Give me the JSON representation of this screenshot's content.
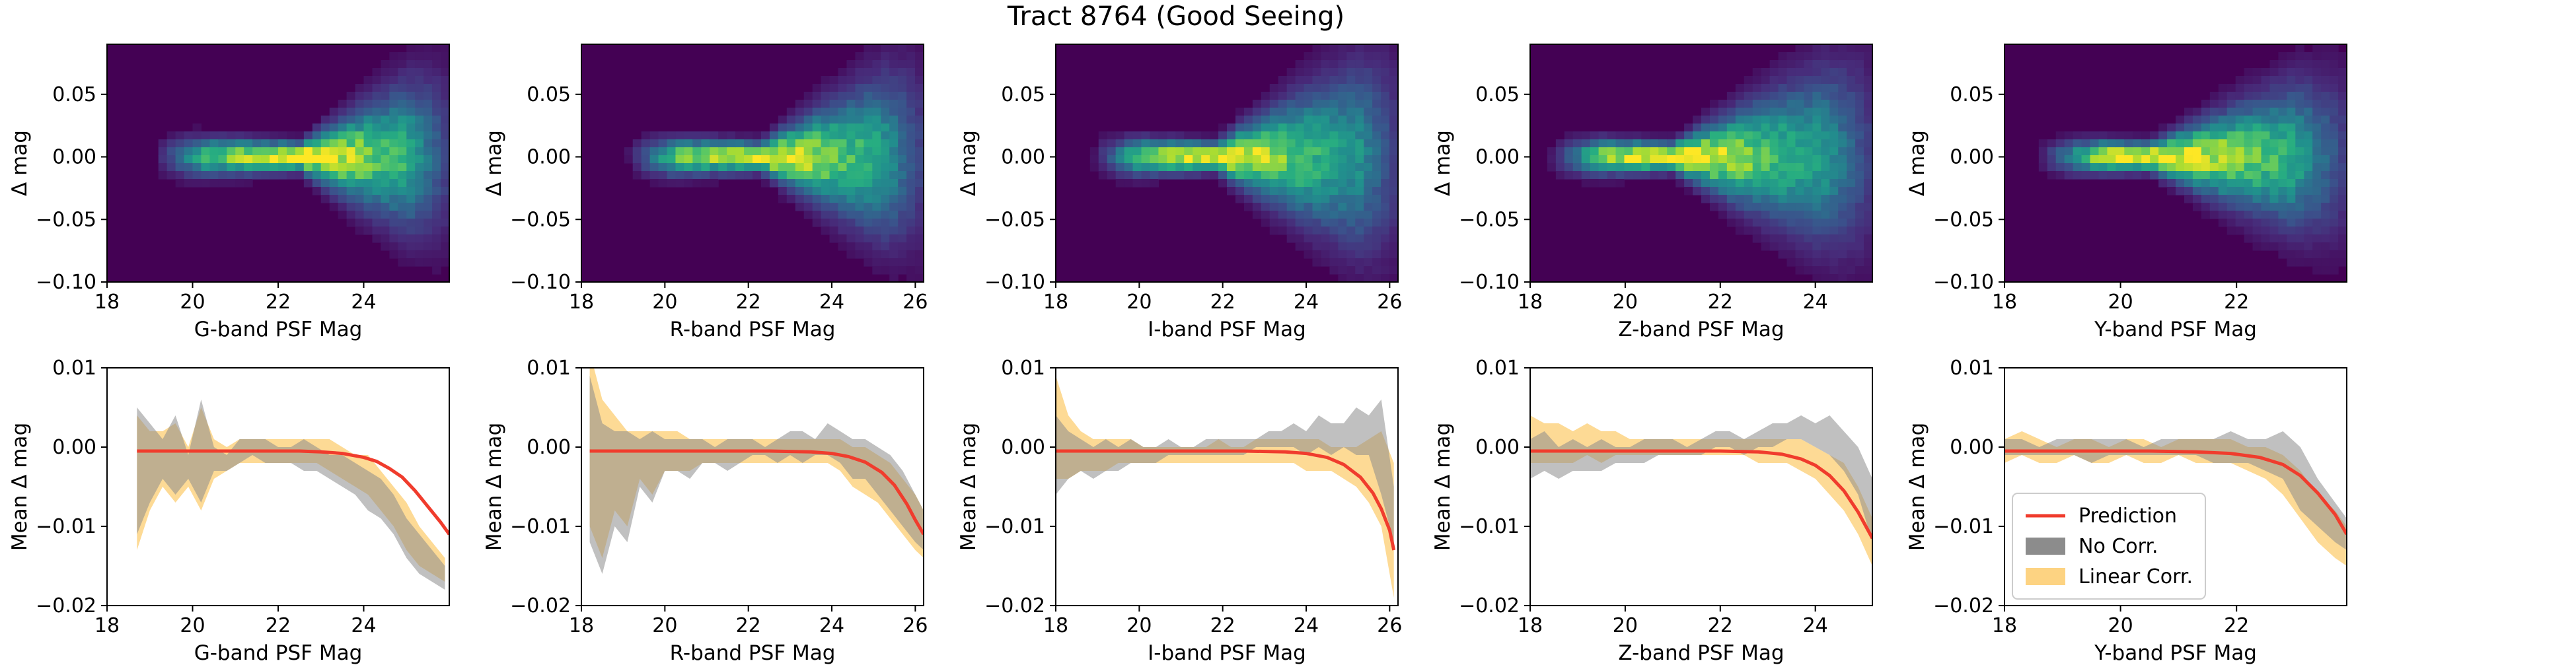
{
  "figure": {
    "title": "Tract 8764 (Good Seeing)"
  },
  "colors": {
    "heatmap_colormap": "viridis",
    "prediction_line": "#f03c2d",
    "no_corr_fill": "#8c8c8c",
    "linear_corr_fill": "#fdd382",
    "overlap_fill": "#c9a05a"
  },
  "legend": {
    "panel": "bottom-Y",
    "placement": "lower-left",
    "entries": [
      {
        "label": "Prediction",
        "kind": "line"
      },
      {
        "label": "No Corr.",
        "kind": "patch-gray"
      },
      {
        "label": "Linear Corr.",
        "kind": "patch-orange"
      }
    ]
  },
  "chart_data": [
    {
      "type": "heatmap",
      "row": "top",
      "band": "G",
      "xlabel": "G-band PSF Mag",
      "ylabel": "Δ mag",
      "xlim": [
        18,
        26
      ],
      "ylim": [
        -0.1,
        0.09
      ],
      "xticks": [
        "18",
        "20",
        "22",
        "24"
      ],
      "yticks": [
        "−0.10",
        "−0.05",
        "0.00",
        "0.05"
      ],
      "density": {
        "center_x": 22.5,
        "center_y": 0.0,
        "x_start": 19.0,
        "x_end": 26.0,
        "width_at_faint_end": 0.05
      }
    },
    {
      "type": "heatmap",
      "row": "top",
      "band": "R",
      "xlabel": "R-band PSF Mag",
      "ylabel": "Δ mag",
      "xlim": [
        18,
        26.2
      ],
      "ylim": [
        -0.1,
        0.09
      ],
      "xticks": [
        "18",
        "20",
        "22",
        "24",
        "26"
      ],
      "yticks": [
        "−0.10",
        "−0.05",
        "0.00",
        "0.05"
      ],
      "density": {
        "center_x": 22.3,
        "center_y": 0.0,
        "x_start": 19.0,
        "x_end": 26.2,
        "width_at_faint_end": 0.05
      }
    },
    {
      "type": "heatmap",
      "row": "top",
      "band": "I",
      "xlabel": "I-band PSF Mag",
      "ylabel": "Δ mag",
      "xlim": [
        18,
        26.2
      ],
      "ylim": [
        -0.1,
        0.09
      ],
      "xticks": [
        "18",
        "20",
        "22",
        "24",
        "26"
      ],
      "yticks": [
        "−0.10",
        "−0.05",
        "0.00",
        "0.05"
      ],
      "density": {
        "center_x": 21.8,
        "center_y": 0.0,
        "x_start": 18.8,
        "x_end": 26.2,
        "width_at_faint_end": 0.05
      }
    },
    {
      "type": "heatmap",
      "row": "top",
      "band": "Z",
      "xlabel": "Z-band PSF Mag",
      "ylabel": "Δ mag",
      "xlim": [
        18,
        25.2
      ],
      "ylim": [
        -0.1,
        0.09
      ],
      "xticks": [
        "18",
        "20",
        "22",
        "24"
      ],
      "yticks": [
        "−0.10",
        "−0.05",
        "0.00",
        "0.05"
      ],
      "density": {
        "center_x": 21.0,
        "center_y": 0.0,
        "x_start": 18.3,
        "x_end": 25.2,
        "width_at_faint_end": 0.05
      }
    },
    {
      "type": "heatmap",
      "row": "top",
      "band": "Y",
      "xlabel": "Y-band PSF Mag",
      "ylabel": "Δ mag",
      "xlim": [
        18,
        23.9
      ],
      "ylim": [
        -0.1,
        0.09
      ],
      "xticks": [
        "18",
        "20",
        "22"
      ],
      "yticks": [
        "−0.10",
        "−0.05",
        "0.00",
        "0.05"
      ],
      "density": {
        "center_x": 20.5,
        "center_y": 0.0,
        "x_start": 18.5,
        "x_end": 23.9,
        "width_at_faint_end": 0.05
      }
    },
    {
      "type": "area",
      "row": "bottom",
      "band": "G",
      "xlabel": "G-band PSF Mag",
      "ylabel": "Mean Δ mag",
      "xlim": [
        18,
        26
      ],
      "ylim": [
        -0.02,
        0.01
      ],
      "xticks": [
        "18",
        "20",
        "22",
        "24"
      ],
      "yticks": [
        "−0.02",
        "−0.01",
        "0.00",
        "0.01"
      ],
      "x": [
        18.7,
        19.0,
        19.3,
        19.6,
        19.9,
        20.2,
        20.5,
        20.8,
        21.1,
        21.4,
        21.7,
        22.0,
        22.3,
        22.6,
        22.9,
        23.2,
        23.5,
        23.8,
        24.1,
        24.4,
        24.7,
        25.0,
        25.3,
        25.6,
        25.9
      ],
      "no_corr_upper": [
        0.005,
        0.003,
        0.001,
        0.004,
        -0.001,
        0.006,
        0.0,
        -0.001,
        0.001,
        0.001,
        0.001,
        0.0,
        0.0,
        0.001,
        0.0,
        -0.001,
        -0.001,
        -0.002,
        -0.003,
        -0.004,
        -0.006,
        -0.009,
        -0.011,
        -0.013,
        -0.015
      ],
      "no_corr_lower": [
        -0.011,
        -0.007,
        -0.004,
        -0.006,
        -0.004,
        -0.007,
        -0.003,
        -0.003,
        -0.002,
        -0.001,
        -0.002,
        -0.002,
        -0.002,
        -0.003,
        -0.003,
        -0.004,
        -0.005,
        -0.006,
        -0.008,
        -0.009,
        -0.011,
        -0.014,
        -0.016,
        -0.017,
        -0.018
      ],
      "linear_upper": [
        0.004,
        0.002,
        0.002,
        0.003,
        0.0,
        0.005,
        0.001,
        0.0,
        0.001,
        0.001,
        0.001,
        0.001,
        0.001,
        0.001,
        0.001,
        0.001,
        0.0,
        -0.001,
        -0.001,
        -0.003,
        -0.005,
        -0.007,
        -0.01,
        -0.012,
        -0.014
      ],
      "linear_lower": [
        -0.013,
        -0.008,
        -0.005,
        -0.007,
        -0.005,
        -0.008,
        -0.004,
        -0.003,
        -0.002,
        -0.002,
        -0.002,
        -0.002,
        -0.002,
        -0.002,
        -0.002,
        -0.003,
        -0.004,
        -0.005,
        -0.006,
        -0.008,
        -0.01,
        -0.013,
        -0.015,
        -0.016,
        -0.017
      ],
      "prediction": {
        "x": [
          18.7,
          19.5,
          20.5,
          21.5,
          22.5,
          23.0,
          23.5,
          24.0,
          24.3,
          24.6,
          24.9,
          25.2,
          25.5,
          25.8,
          26.0
        ],
        "y": [
          -0.0005,
          -0.0005,
          -0.0005,
          -0.0005,
          -0.0005,
          -0.0006,
          -0.0008,
          -0.0013,
          -0.0018,
          -0.0027,
          -0.0038,
          -0.0055,
          -0.0075,
          -0.0095,
          -0.011
        ]
      }
    },
    {
      "type": "area",
      "row": "bottom",
      "band": "R",
      "xlabel": "R-band PSF Mag",
      "ylabel": "Mean Δ mag",
      "xlim": [
        18,
        26.2
      ],
      "ylim": [
        -0.02,
        0.01
      ],
      "xticks": [
        "18",
        "20",
        "22",
        "24",
        "26"
      ],
      "yticks": [
        "−0.02",
        "−0.01",
        "0.00",
        "0.01"
      ],
      "x": [
        18.2,
        18.5,
        18.8,
        19.1,
        19.4,
        19.7,
        20.0,
        20.3,
        20.6,
        20.9,
        21.2,
        21.5,
        21.8,
        22.1,
        22.4,
        22.7,
        23.0,
        23.3,
        23.6,
        23.9,
        24.2,
        24.5,
        24.8,
        25.1,
        25.4,
        25.7,
        26.0,
        26.2
      ],
      "no_corr_upper": [
        0.009,
        0.003,
        0.002,
        0.002,
        0.001,
        0.002,
        0.001,
        0.001,
        0.001,
        0.001,
        0.0,
        0.001,
        0.001,
        0.001,
        0.0,
        0.001,
        0.002,
        0.002,
        0.001,
        0.003,
        0.002,
        0.001,
        0.001,
        0.0,
        -0.001,
        -0.003,
        -0.006,
        -0.008
      ],
      "no_corr_lower": [
        -0.012,
        -0.016,
        -0.01,
        -0.012,
        -0.005,
        -0.007,
        -0.003,
        -0.003,
        -0.004,
        -0.002,
        -0.002,
        -0.003,
        -0.002,
        -0.001,
        -0.001,
        -0.002,
        -0.001,
        -0.002,
        -0.001,
        -0.001,
        -0.002,
        -0.004,
        -0.004,
        -0.006,
        -0.008,
        -0.01,
        -0.012,
        -0.013
      ],
      "linear_upper": [
        0.012,
        0.006,
        0.004,
        0.002,
        0.002,
        0.002,
        0.002,
        0.002,
        0.001,
        0.001,
        0.001,
        0.001,
        0.001,
        0.001,
        0.001,
        0.001,
        0.001,
        0.001,
        0.001,
        0.001,
        0.001,
        0.0,
        0.0,
        -0.001,
        -0.002,
        -0.004,
        -0.006,
        -0.008
      ],
      "linear_lower": [
        -0.01,
        -0.014,
        -0.008,
        -0.01,
        -0.004,
        -0.006,
        -0.003,
        -0.003,
        -0.003,
        -0.002,
        -0.002,
        -0.002,
        -0.002,
        -0.002,
        -0.002,
        -0.002,
        -0.002,
        -0.002,
        -0.002,
        -0.002,
        -0.003,
        -0.005,
        -0.006,
        -0.007,
        -0.009,
        -0.011,
        -0.013,
        -0.014
      ],
      "prediction": {
        "x": [
          18.2,
          19.5,
          21.0,
          22.5,
          23.5,
          24.0,
          24.4,
          24.8,
          25.2,
          25.5,
          25.8,
          26.0,
          26.2
        ],
        "y": [
          -0.0005,
          -0.0005,
          -0.0005,
          -0.0005,
          -0.0006,
          -0.0008,
          -0.0012,
          -0.0019,
          -0.0032,
          -0.0048,
          -0.0072,
          -0.0092,
          -0.011
        ]
      }
    },
    {
      "type": "area",
      "row": "bottom",
      "band": "I",
      "xlabel": "I-band PSF Mag",
      "ylabel": "Mean Δ mag",
      "xlim": [
        18,
        26.2
      ],
      "ylim": [
        -0.02,
        0.01
      ],
      "xticks": [
        "18",
        "20",
        "22",
        "24",
        "26"
      ],
      "yticks": [
        "−0.02",
        "−0.01",
        "0.00",
        "0.01"
      ],
      "x": [
        18.0,
        18.3,
        18.6,
        18.9,
        19.2,
        19.5,
        19.8,
        20.1,
        20.4,
        20.7,
        21.0,
        21.3,
        21.6,
        21.9,
        22.2,
        22.5,
        22.8,
        23.1,
        23.4,
        23.7,
        24.0,
        24.3,
        24.6,
        24.9,
        25.2,
        25.5,
        25.8,
        26.1
      ],
      "no_corr_upper": [
        0.004,
        0.002,
        0.001,
        0.0,
        0.001,
        0.0,
        0.001,
        0.0,
        0.0,
        0.001,
        0.0,
        0.0,
        0.001,
        0.001,
        0.001,
        0.001,
        0.001,
        0.002,
        0.002,
        0.003,
        0.002,
        0.004,
        0.003,
        0.003,
        0.005,
        0.004,
        0.006,
        -0.005
      ],
      "no_corr_lower": [
        -0.006,
        -0.004,
        -0.003,
        -0.004,
        -0.003,
        -0.003,
        -0.002,
        -0.002,
        -0.002,
        -0.001,
        -0.001,
        -0.001,
        -0.001,
        -0.001,
        -0.001,
        -0.001,
        0.0,
        0.0,
        0.0,
        0.0,
        -0.001,
        0.0,
        -0.001,
        0.0,
        -0.001,
        -0.001,
        -0.006,
        -0.012
      ],
      "linear_upper": [
        0.009,
        0.004,
        0.002,
        0.001,
        0.001,
        0.001,
        0.001,
        0.0,
        0.0,
        0.0,
        0.0,
        0.0,
        0.0,
        0.001,
        0.0,
        0.0,
        0.001,
        0.001,
        0.001,
        0.001,
        0.001,
        0.001,
        0.0,
        0.0,
        0.0,
        0.001,
        0.002,
        -0.002
      ],
      "linear_lower": [
        -0.004,
        -0.004,
        -0.003,
        -0.003,
        -0.003,
        -0.002,
        -0.002,
        -0.002,
        -0.002,
        -0.002,
        -0.002,
        -0.002,
        -0.002,
        -0.002,
        -0.002,
        -0.002,
        -0.002,
        -0.002,
        -0.002,
        -0.002,
        -0.003,
        -0.003,
        -0.003,
        -0.004,
        -0.005,
        -0.007,
        -0.01,
        -0.019
      ],
      "prediction": {
        "x": [
          18.0,
          19.5,
          21.0,
          22.5,
          23.5,
          24.0,
          24.5,
          24.9,
          25.3,
          25.6,
          25.8,
          26.0,
          26.1
        ],
        "y": [
          -0.0005,
          -0.0005,
          -0.0005,
          -0.0005,
          -0.0006,
          -0.0008,
          -0.0013,
          -0.0022,
          -0.0038,
          -0.0058,
          -0.0078,
          -0.0105,
          -0.013
        ]
      }
    },
    {
      "type": "area",
      "row": "bottom",
      "band": "Z",
      "xlabel": "Z-band PSF Mag",
      "ylabel": "Mean Δ mag",
      "xlim": [
        18,
        25.2
      ],
      "ylim": [
        -0.02,
        0.01
      ],
      "xticks": [
        "18",
        "20",
        "22",
        "24"
      ],
      "yticks": [
        "−0.02",
        "−0.01",
        "0.00",
        "0.01"
      ],
      "x": [
        18.0,
        18.3,
        18.6,
        18.9,
        19.2,
        19.5,
        19.8,
        20.1,
        20.4,
        20.7,
        21.0,
        21.3,
        21.6,
        21.9,
        22.2,
        22.5,
        22.8,
        23.1,
        23.4,
        23.7,
        24.0,
        24.3,
        24.6,
        24.9,
        25.2
      ],
      "no_corr_upper": [
        0.001,
        0.002,
        0.0,
        0.001,
        0.0,
        0.001,
        0.0,
        0.0,
        0.001,
        0.001,
        0.001,
        0.0,
        0.001,
        0.002,
        0.002,
        0.001,
        0.002,
        0.003,
        0.003,
        0.004,
        0.003,
        0.004,
        0.002,
        0.0,
        -0.004
      ],
      "no_corr_lower": [
        -0.004,
        -0.003,
        -0.004,
        -0.003,
        -0.003,
        -0.003,
        -0.002,
        -0.002,
        -0.002,
        -0.001,
        -0.001,
        -0.001,
        -0.001,
        0.0,
        0.0,
        -0.001,
        0.0,
        0.0,
        0.001,
        0.001,
        0.0,
        -0.001,
        -0.003,
        -0.006,
        -0.012
      ],
      "linear_upper": [
        0.004,
        0.003,
        0.003,
        0.002,
        0.003,
        0.002,
        0.002,
        0.001,
        0.001,
        0.001,
        0.001,
        0.001,
        0.001,
        0.001,
        0.001,
        0.001,
        0.001,
        0.001,
        0.001,
        0.001,
        0.0,
        -0.001,
        -0.002,
        -0.005,
        -0.009
      ],
      "linear_lower": [
        -0.002,
        -0.002,
        -0.002,
        -0.002,
        -0.001,
        -0.002,
        -0.001,
        -0.001,
        -0.001,
        -0.001,
        -0.001,
        -0.001,
        -0.001,
        -0.001,
        -0.001,
        -0.001,
        -0.002,
        -0.002,
        -0.002,
        -0.003,
        -0.004,
        -0.006,
        -0.008,
        -0.011,
        -0.015
      ],
      "prediction": {
        "x": [
          18.0,
          19.5,
          21.0,
          22.0,
          22.8,
          23.3,
          23.7,
          24.0,
          24.3,
          24.6,
          24.9,
          25.2
        ],
        "y": [
          -0.0005,
          -0.0005,
          -0.0005,
          -0.0005,
          -0.0006,
          -0.0009,
          -0.0015,
          -0.0023,
          -0.0036,
          -0.0055,
          -0.0082,
          -0.0115
        ]
      }
    },
    {
      "type": "area",
      "row": "bottom",
      "band": "Y",
      "xlabel": "Y-band PSF Mag",
      "ylabel": "Mean Δ mag",
      "xlim": [
        18,
        23.9
      ],
      "ylim": [
        -0.02,
        0.01
      ],
      "xticks": [
        "18",
        "20",
        "22"
      ],
      "yticks": [
        "−0.02",
        "−0.01",
        "0.00",
        "0.01"
      ],
      "x": [
        18.0,
        18.3,
        18.6,
        18.9,
        19.2,
        19.5,
        19.8,
        20.1,
        20.4,
        20.7,
        21.0,
        21.3,
        21.6,
        21.9,
        22.2,
        22.5,
        22.8,
        23.1,
        23.4,
        23.7,
        23.9
      ],
      "no_corr_upper": [
        0.001,
        0.001,
        0.0,
        0.001,
        0.001,
        0.001,
        0.001,
        0.001,
        0.0,
        0.001,
        0.001,
        0.001,
        0.001,
        0.002,
        0.001,
        0.001,
        0.002,
        0.0,
        -0.004,
        -0.007,
        -0.009
      ],
      "no_corr_lower": [
        -0.001,
        -0.001,
        -0.001,
        -0.001,
        -0.001,
        -0.002,
        -0.001,
        -0.001,
        -0.001,
        -0.001,
        -0.001,
        -0.001,
        -0.002,
        -0.002,
        -0.002,
        -0.003,
        -0.004,
        -0.008,
        -0.01,
        -0.012,
        -0.013
      ],
      "linear_upper": [
        0.001,
        0.002,
        0.001,
        0.0,
        0.001,
        0.001,
        0.0,
        0.001,
        0.001,
        0.0,
        0.001,
        0.001,
        0.001,
        0.001,
        0.0,
        0.0,
        -0.001,
        -0.003,
        -0.006,
        -0.008,
        -0.01
      ],
      "linear_lower": [
        -0.002,
        -0.001,
        -0.002,
        -0.002,
        -0.001,
        -0.002,
        -0.002,
        -0.001,
        -0.002,
        -0.002,
        -0.001,
        -0.002,
        -0.002,
        -0.002,
        -0.003,
        -0.004,
        -0.006,
        -0.009,
        -0.012,
        -0.014,
        -0.015
      ],
      "prediction": {
        "x": [
          18.0,
          19.5,
          20.5,
          21.3,
          21.9,
          22.4,
          22.8,
          23.1,
          23.4,
          23.7,
          23.9
        ],
        "y": [
          -0.0005,
          -0.0005,
          -0.0005,
          -0.0006,
          -0.0008,
          -0.0013,
          -0.0022,
          -0.0036,
          -0.0058,
          -0.0085,
          -0.011
        ]
      }
    }
  ]
}
